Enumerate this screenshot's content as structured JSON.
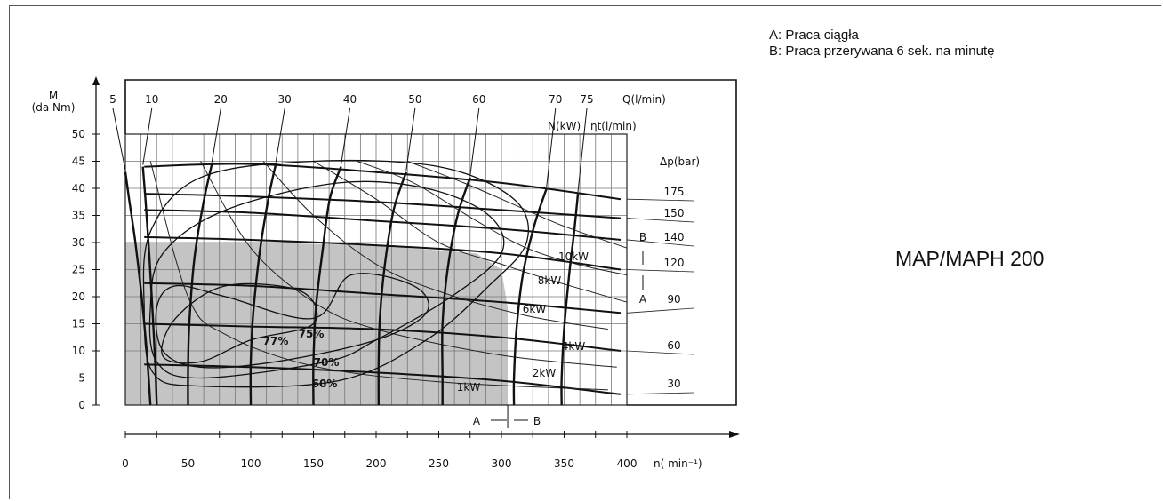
{
  "legend": {
    "a": "A: Praca ciągła",
    "b": "B: Praca przerywana 6 sek. na minutę"
  },
  "model_label": "MAP/MAPH 200",
  "chart_data": {
    "type": "line",
    "xlabel": "n( min⁻¹)",
    "ylabel_line1": "M",
    "ylabel_line2": "(da Nm)",
    "xlim": [
      0,
      400
    ],
    "ylim": [
      0,
      50
    ],
    "x_ticks": [
      0,
      50,
      100,
      150,
      200,
      250,
      300,
      350,
      400
    ],
    "y_ticks": [
      0,
      5,
      10,
      15,
      20,
      25,
      30,
      35,
      40,
      45,
      50
    ],
    "grid": true,
    "flow_label": "Q(l/min)",
    "flow_curves": [
      {
        "q": "5",
        "points": [
          [
            0,
            43
          ],
          [
            3,
            38
          ],
          [
            8,
            30
          ],
          [
            13,
            20
          ],
          [
            17,
            10
          ],
          [
            20,
            0
          ]
        ]
      },
      {
        "q": "10",
        "points": [
          [
            14,
            44
          ],
          [
            16,
            38
          ],
          [
            19,
            28
          ],
          [
            22,
            16
          ],
          [
            24,
            7
          ],
          [
            25,
            0
          ]
        ]
      },
      {
        "q": "20",
        "points": [
          [
            69,
            44.5
          ],
          [
            62,
            37
          ],
          [
            55,
            27
          ],
          [
            51,
            15
          ],
          [
            50,
            6
          ],
          [
            50,
            0
          ]
        ]
      },
      {
        "q": "30",
        "points": [
          [
            120,
            44.5
          ],
          [
            114,
            38
          ],
          [
            107,
            28
          ],
          [
            102,
            17
          ],
          [
            100,
            8
          ],
          [
            100,
            0
          ]
        ]
      },
      {
        "q": "40",
        "points": [
          [
            172,
            44
          ],
          [
            163,
            38
          ],
          [
            157,
            28
          ],
          [
            152,
            18
          ],
          [
            150,
            8
          ],
          [
            150,
            0
          ]
        ]
      },
      {
        "q": "50",
        "points": [
          [
            224,
            43
          ],
          [
            214,
            36
          ],
          [
            207,
            26
          ],
          [
            203,
            16
          ],
          [
            202,
            8
          ],
          [
            202,
            0
          ]
        ]
      },
      {
        "q": "60",
        "points": [
          [
            275,
            42
          ],
          [
            265,
            35
          ],
          [
            257,
            25
          ],
          [
            253,
            15
          ],
          [
            253,
            5
          ],
          [
            253,
            0
          ]
        ]
      },
      {
        "q": "70",
        "points": [
          [
            336,
            40
          ],
          [
            326,
            33
          ],
          [
            317,
            24
          ],
          [
            312,
            14
          ],
          [
            310,
            5
          ],
          [
            310,
            0
          ]
        ]
      },
      {
        "q": "75",
        "points": [
          [
            361,
            39
          ],
          [
            358,
            32
          ],
          [
            354,
            24
          ],
          [
            350,
            14
          ],
          [
            348,
            5
          ],
          [
            348,
            0
          ]
        ]
      }
    ],
    "power_label": "N(kW)",
    "power_curves": [
      {
        "label": "1kW",
        "points": [
          [
            20,
            45
          ],
          [
            50,
            20
          ],
          [
            80,
            13
          ],
          [
            150,
            7.2
          ],
          [
            250,
            4.3
          ],
          [
            385,
            2.8
          ]
        ]
      },
      {
        "label": "2kW",
        "points": [
          [
            60,
            45
          ],
          [
            100,
            29
          ],
          [
            150,
            19
          ],
          [
            200,
            14
          ],
          [
            300,
            9.2
          ],
          [
            392,
            7
          ]
        ]
      },
      {
        "label": "4kW",
        "points": [
          [
            110,
            45
          ],
          [
            150,
            35
          ],
          [
            200,
            26
          ],
          [
            250,
            21
          ],
          [
            320,
            16.5
          ],
          [
            385,
            14
          ]
        ]
      },
      {
        "label": "6kW",
        "points": [
          [
            150,
            45
          ],
          [
            200,
            38
          ],
          [
            250,
            30
          ],
          [
            300,
            26
          ],
          [
            340,
            23
          ],
          [
            400,
            19
          ]
        ]
      },
      {
        "label": "8kW",
        "points": [
          [
            185,
            45
          ],
          [
            230,
            41
          ],
          [
            280,
            34
          ],
          [
            320,
            29
          ],
          [
            360,
            26
          ],
          [
            400,
            24
          ]
        ]
      },
      {
        "label": "10kW",
        "points": [
          [
            225,
            45
          ],
          [
            270,
            41
          ],
          [
            310,
            37
          ],
          [
            350,
            33
          ],
          [
            400,
            29
          ]
        ]
      }
    ],
    "efficiency_label": "ηt(l/min)",
    "efficiency_curves": [
      {
        "label": "77%",
        "points": [
          [
            100,
            12
          ],
          [
            60,
            8
          ],
          [
            30,
            9
          ],
          [
            40,
            16
          ],
          [
            80,
            22
          ],
          [
            140,
            21
          ],
          [
            150,
            15
          ],
          [
            100,
            12
          ]
        ]
      },
      {
        "label": "75%",
        "points": [
          [
            150,
            16
          ],
          [
            80,
            20
          ],
          [
            40,
            22
          ],
          [
            25,
            18
          ],
          [
            30,
            10
          ],
          [
            60,
            7
          ],
          [
            120,
            8
          ],
          [
            200,
            12
          ],
          [
            240,
            17
          ],
          [
            230,
            22
          ],
          [
            180,
            24
          ],
          [
            150,
            16
          ]
        ]
      },
      {
        "label": "70%",
        "points": [
          [
            160,
            8
          ],
          [
            60,
            5
          ],
          [
            25,
            8
          ],
          [
            20,
            18
          ],
          [
            30,
            28
          ],
          [
            80,
            36
          ],
          [
            170,
            41
          ],
          [
            240,
            40
          ],
          [
            290,
            35
          ],
          [
            300,
            28
          ],
          [
            260,
            20
          ],
          [
            200,
            12
          ],
          [
            160,
            8
          ]
        ]
      },
      {
        "label": "60%",
        "points": [
          [
            170,
            4.5
          ],
          [
            60,
            3.5
          ],
          [
            22,
            6
          ],
          [
            15,
            18
          ],
          [
            20,
            32
          ],
          [
            60,
            42
          ],
          [
            150,
            45
          ],
          [
            250,
            44
          ],
          [
            310,
            38
          ],
          [
            320,
            30
          ],
          [
            290,
            22
          ],
          [
            240,
            12
          ],
          [
            170,
            4.5
          ]
        ]
      }
    ],
    "pressure_label": "Δp(bar)",
    "pressure_lines": [
      {
        "label": "175",
        "points": [
          [
            15,
            44
          ],
          [
            100,
            44.5
          ],
          [
            200,
            43
          ],
          [
            300,
            41
          ],
          [
            395,
            38
          ]
        ]
      },
      {
        "label": "150",
        "points": [
          [
            15,
            39
          ],
          [
            100,
            38.5
          ],
          [
            200,
            37.5
          ],
          [
            300,
            36
          ],
          [
            395,
            34.5
          ]
        ]
      },
      {
        "label": "140",
        "points": [
          [
            15,
            36
          ],
          [
            100,
            35.5
          ],
          [
            200,
            34
          ],
          [
            300,
            32.5
          ],
          [
            395,
            30.5
          ]
        ]
      },
      {
        "label": "120",
        "points": [
          [
            15,
            31
          ],
          [
            100,
            30.5
          ],
          [
            200,
            29.5
          ],
          [
            300,
            28
          ],
          [
            395,
            25
          ]
        ]
      },
      {
        "label": "90",
        "points": [
          [
            15,
            22.5
          ],
          [
            100,
            22
          ],
          [
            200,
            20.5
          ],
          [
            300,
            19
          ],
          [
            395,
            17
          ]
        ]
      },
      {
        "label": "60",
        "points": [
          [
            15,
            15
          ],
          [
            100,
            14.5
          ],
          [
            200,
            14
          ],
          [
            300,
            12.5
          ],
          [
            395,
            10
          ]
        ]
      },
      {
        "label": "30",
        "points": [
          [
            15,
            7.5
          ],
          [
            100,
            7
          ],
          [
            200,
            6
          ],
          [
            300,
            4.5
          ],
          [
            395,
            2
          ]
        ]
      }
    ],
    "zones": {
      "boundary_n": 305,
      "label_a": "A",
      "label_b": "B",
      "shaded_region_top": [
        [
          0,
          30
        ],
        [
          100,
          30
        ],
        [
          200,
          29.5
        ],
        [
          280,
          28
        ],
        [
          300,
          25
        ],
        [
          305,
          18
        ],
        [
          305,
          0
        ]
      ]
    }
  }
}
